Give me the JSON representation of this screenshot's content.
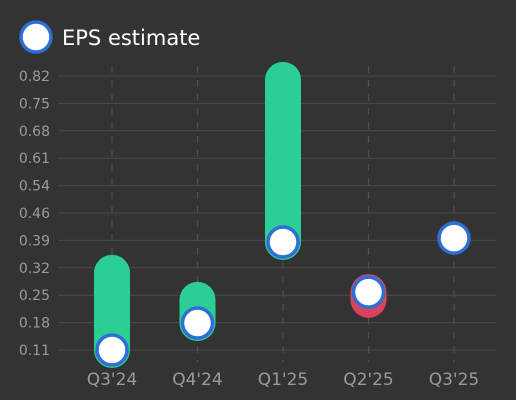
{
  "chart_data": {
    "type": "scatter",
    "categories": [
      "Q3'24",
      "Q4'24",
      "Q1'25",
      "Q2'25",
      "Q3'25"
    ],
    "yticks": [
      "0.82",
      "0.75",
      "0.68",
      "0.61",
      "0.54",
      "0.46",
      "0.39",
      "0.32",
      "0.25",
      "0.18",
      "0.11"
    ],
    "ylim": [
      0.11,
      0.82
    ],
    "grid": "horizontal-solid, vertical-dashed",
    "legend_position": "top-left",
    "series": [
      {
        "name": "EPS estimate",
        "values": [
          0.11,
          0.18,
          0.39,
          0.26,
          0.4
        ]
      }
    ],
    "actuals": [
      0.31,
      0.24,
      0.81,
      0.24,
      null
    ],
    "colors": {
      "beat": "#2bcf95",
      "miss": "#d9445c",
      "estimate_fill": "#ffffff",
      "estimate_stroke": "#2e6ed6",
      "background": "#333333"
    }
  }
}
